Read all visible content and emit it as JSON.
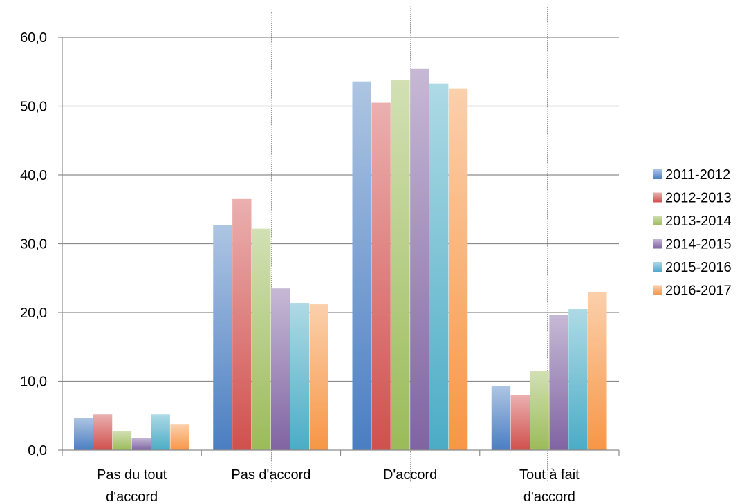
{
  "chart_data": {
    "type": "bar",
    "categories": [
      [
        "Pas du tout",
        "d'accord"
      ],
      [
        "Pas d'accord"
      ],
      [
        "D'accord"
      ],
      [
        "Tout à fait",
        "d'accord"
      ]
    ],
    "series": [
      {
        "name": "2011-2012",
        "color": "#4A7EC1",
        "values": [
          4.7,
          32.7,
          53.6,
          9.3
        ]
      },
      {
        "name": "2012-2013",
        "color": "#D0504D",
        "values": [
          5.2,
          36.5,
          50.5,
          8.0
        ]
      },
      {
        "name": "2013-2014",
        "color": "#9BBB59",
        "values": [
          2.8,
          32.2,
          53.8,
          11.5
        ]
      },
      {
        "name": "2014-2015",
        "color": "#8064A2",
        "values": [
          1.8,
          23.5,
          55.4,
          19.6
        ]
      },
      {
        "name": "2015-2016",
        "color": "#4BACC6",
        "values": [
          5.2,
          21.4,
          53.3,
          20.5
        ]
      },
      {
        "name": "2016-2017",
        "color": "#F79646",
        "values": [
          3.7,
          21.2,
          52.5,
          23.0
        ]
      }
    ],
    "yticks": [
      "0,0",
      "10,0",
      "20,0",
      "30,0",
      "40,0",
      "50,0",
      "60,0"
    ],
    "ylim": [
      0,
      60
    ],
    "grid": true,
    "legend": "right",
    "title": "",
    "xlabel": "",
    "ylabel": ""
  }
}
